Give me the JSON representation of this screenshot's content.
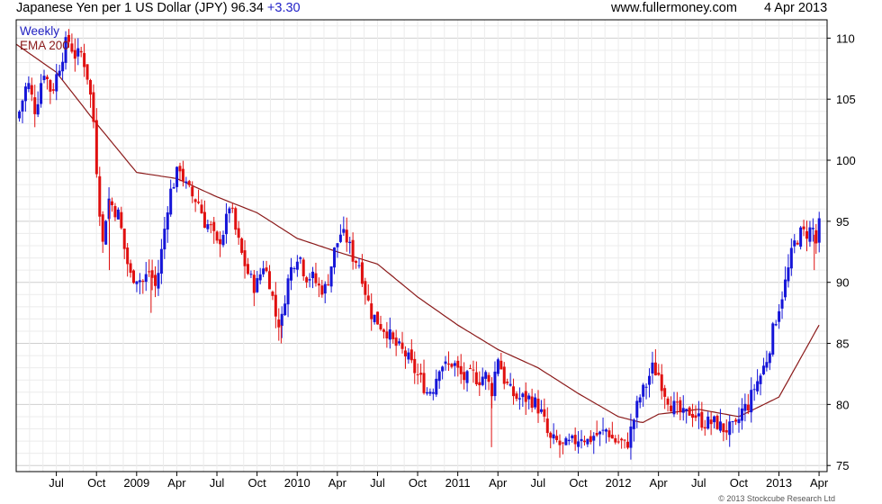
{
  "header": {
    "title": "Japanese Yen per 1 US Dollar (JPY) 96.34",
    "change": "+3.30",
    "site": "www.fullermoney.com",
    "date": "4 Apr 2013"
  },
  "legend": {
    "weekly": "Weekly",
    "ema": "EMA 200"
  },
  "copyright": "© 2013 Stockcube Research Ltd",
  "colors": {
    "up": "#1515d8",
    "down": "#e01010",
    "ema": "#8b1a1a",
    "grid": "#dcdcdc",
    "frame": "#000000",
    "legend_weekly": "#1d1dc0",
    "legend_ema": "#8b1a1a"
  },
  "chart_data": {
    "type": "candlestick",
    "title": "Japanese Yen per 1 US Dollar (JPY) 96.34",
    "interval": "Weekly",
    "ylim": [
      73.5,
      111.5
    ],
    "y_ticks": [
      75,
      80,
      85,
      90,
      95,
      100,
      105,
      110
    ],
    "x_ticks": [
      {
        "label": "Jul",
        "t": 2008.5
      },
      {
        "label": "Oct",
        "t": 2008.75
      },
      {
        "label": "2009",
        "t": 2009.0
      },
      {
        "label": "Apr",
        "t": 2009.25
      },
      {
        "label": "Jul",
        "t": 2009.5
      },
      {
        "label": "Oct",
        "t": 2009.75
      },
      {
        "label": "2010",
        "t": 2010.0
      },
      {
        "label": "Apr",
        "t": 2010.25
      },
      {
        "label": "Jul",
        "t": 2010.5
      },
      {
        "label": "Oct",
        "t": 2010.75
      },
      {
        "label": "2011",
        "t": 2011.0
      },
      {
        "label": "Apr",
        "t": 2011.25
      },
      {
        "label": "Jul",
        "t": 2011.5
      },
      {
        "label": "Oct",
        "t": 2011.75
      },
      {
        "label": "2012",
        "t": 2012.0
      },
      {
        "label": "Apr",
        "t": 2012.25
      },
      {
        "label": "Jul",
        "t": 2012.5
      },
      {
        "label": "Oct",
        "t": 2012.75
      },
      {
        "label": "2013",
        "t": 2013.0
      },
      {
        "label": "Apr",
        "t": 2013.25
      }
    ],
    "xlim": [
      2008.25,
      2013.28
    ],
    "close_anchors": [
      [
        2008.27,
        104.0
      ],
      [
        2008.32,
        106.5
      ],
      [
        2008.37,
        104.0
      ],
      [
        2008.42,
        107.5
      ],
      [
        2008.47,
        105.5
      ],
      [
        2008.52,
        107.8
      ],
      [
        2008.57,
        110.0
      ],
      [
        2008.62,
        108.5
      ],
      [
        2008.66,
        108.8
      ],
      [
        2008.7,
        106.5
      ],
      [
        2008.73,
        103.5
      ],
      [
        2008.76,
        97.5
      ],
      [
        2008.79,
        93.0
      ],
      [
        2008.82,
        97.0
      ],
      [
        2008.86,
        96.0
      ],
      [
        2008.89,
        95.5
      ],
      [
        2008.92,
        93.0
      ],
      [
        2008.96,
        90.5
      ],
      [
        2009.0,
        90.5
      ],
      [
        2009.04,
        90.0
      ],
      [
        2009.08,
        91.0
      ],
      [
        2009.12,
        89.5
      ],
      [
        2009.16,
        93.0
      ],
      [
        2009.2,
        97.0
      ],
      [
        2009.24,
        98.5
      ],
      [
        2009.27,
        99.5
      ],
      [
        2009.3,
        98.0
      ],
      [
        2009.35,
        97.0
      ],
      [
        2009.39,
        96.5
      ],
      [
        2009.42,
        95.0
      ],
      [
        2009.46,
        94.5
      ],
      [
        2009.5,
        93.0
      ],
      [
        2009.55,
        94.5
      ],
      [
        2009.58,
        96.5
      ],
      [
        2009.62,
        94.0
      ],
      [
        2009.66,
        92.0
      ],
      [
        2009.7,
        90.5
      ],
      [
        2009.74,
        89.5
      ],
      [
        2009.79,
        91.5
      ],
      [
        2009.83,
        90.0
      ],
      [
        2009.87,
        87.0
      ],
      [
        2009.9,
        86.5
      ],
      [
        2009.93,
        89.5
      ],
      [
        2009.97,
        91.5
      ],
      [
        2010.01,
        92.5
      ],
      [
        2010.05,
        90.5
      ],
      [
        2010.09,
        90.5
      ],
      [
        2010.14,
        89.5
      ],
      [
        2010.18,
        89.5
      ],
      [
        2010.23,
        92.5
      ],
      [
        2010.27,
        94.0
      ],
      [
        2010.31,
        93.5
      ],
      [
        2010.35,
        92.0
      ],
      [
        2010.39,
        91.5
      ],
      [
        2010.42,
        89.5
      ],
      [
        2010.46,
        87.5
      ],
      [
        2010.49,
        87.0
      ],
      [
        2010.52,
        86.5
      ],
      [
        2010.56,
        86.0
      ],
      [
        2010.6,
        85.0
      ],
      [
        2010.64,
        84.5
      ],
      [
        2010.68,
        84.0
      ],
      [
        2010.72,
        83.0
      ],
      [
        2010.77,
        82.0
      ],
      [
        2010.81,
        81.0
      ],
      [
        2010.85,
        81.5
      ],
      [
        2010.89,
        83.5
      ],
      [
        2010.93,
        83.0
      ],
      [
        2010.97,
        83.5
      ],
      [
        2011.01,
        82.5
      ],
      [
        2011.05,
        82.0
      ],
      [
        2011.09,
        82.5
      ],
      [
        2011.13,
        82.0
      ],
      [
        2011.17,
        82.5
      ],
      [
        2011.21,
        81.0
      ],
      [
        2011.25,
        84.0
      ],
      [
        2011.29,
        82.0
      ],
      [
        2011.33,
        81.0
      ],
      [
        2011.37,
        80.5
      ],
      [
        2011.41,
        80.5
      ],
      [
        2011.45,
        80.5
      ],
      [
        2011.49,
        80.0
      ],
      [
        2011.53,
        79.0
      ],
      [
        2011.57,
        77.0
      ],
      [
        2011.61,
        77.0
      ],
      [
        2011.65,
        76.5
      ],
      [
        2011.69,
        76.7
      ],
      [
        2011.73,
        77.0
      ],
      [
        2011.77,
        77.5
      ],
      [
        2011.81,
        77.0
      ],
      [
        2011.85,
        77.5
      ],
      [
        2011.89,
        77.5
      ],
      [
        2011.93,
        78.0
      ],
      [
        2011.97,
        77.0
      ],
      [
        2012.01,
        77.0
      ],
      [
        2012.05,
        76.5
      ],
      [
        2012.09,
        78.5
      ],
      [
        2012.13,
        80.5
      ],
      [
        2012.17,
        81.5
      ],
      [
        2012.21,
        83.0
      ],
      [
        2012.25,
        82.5
      ],
      [
        2012.29,
        81.0
      ],
      [
        2012.33,
        80.0
      ],
      [
        2012.37,
        79.5
      ],
      [
        2012.41,
        79.0
      ],
      [
        2012.45,
        79.5
      ],
      [
        2012.49,
        79.0
      ],
      [
        2012.53,
        78.5
      ],
      [
        2012.57,
        78.5
      ],
      [
        2012.61,
        78.5
      ],
      [
        2012.65,
        78.0
      ],
      [
        2012.69,
        78.0
      ],
      [
        2012.73,
        78.0
      ],
      [
        2012.77,
        79.5
      ],
      [
        2012.81,
        80.0
      ],
      [
        2012.85,
        81.5
      ],
      [
        2012.89,
        82.5
      ],
      [
        2012.93,
        84.0
      ],
      [
        2012.97,
        86.5
      ],
      [
        2013.01,
        88.5
      ],
      [
        2013.05,
        90.5
      ],
      [
        2013.09,
        93.0
      ],
      [
        2013.13,
        94.0
      ],
      [
        2013.17,
        94.0
      ],
      [
        2013.21,
        94.5
      ],
      [
        2013.24,
        92.7
      ],
      [
        2013.26,
        96.3
      ]
    ],
    "ema200_anchors": [
      [
        2008.25,
        109.5
      ],
      [
        2008.5,
        107.2
      ],
      [
        2008.75,
        103.0
      ],
      [
        2009.0,
        99.0
      ],
      [
        2009.25,
        98.5
      ],
      [
        2009.5,
        97.0
      ],
      [
        2009.75,
        95.7
      ],
      [
        2010.0,
        93.6
      ],
      [
        2010.25,
        92.5
      ],
      [
        2010.5,
        91.5
      ],
      [
        2010.75,
        88.8
      ],
      [
        2011.0,
        86.5
      ],
      [
        2011.25,
        84.5
      ],
      [
        2011.5,
        83.0
      ],
      [
        2011.75,
        80.9
      ],
      [
        2012.0,
        79.0
      ],
      [
        2012.15,
        78.5
      ],
      [
        2012.25,
        79.2
      ],
      [
        2012.5,
        79.6
      ],
      [
        2012.75,
        79.0
      ],
      [
        2013.0,
        80.6
      ],
      [
        2013.25,
        86.5
      ]
    ]
  }
}
